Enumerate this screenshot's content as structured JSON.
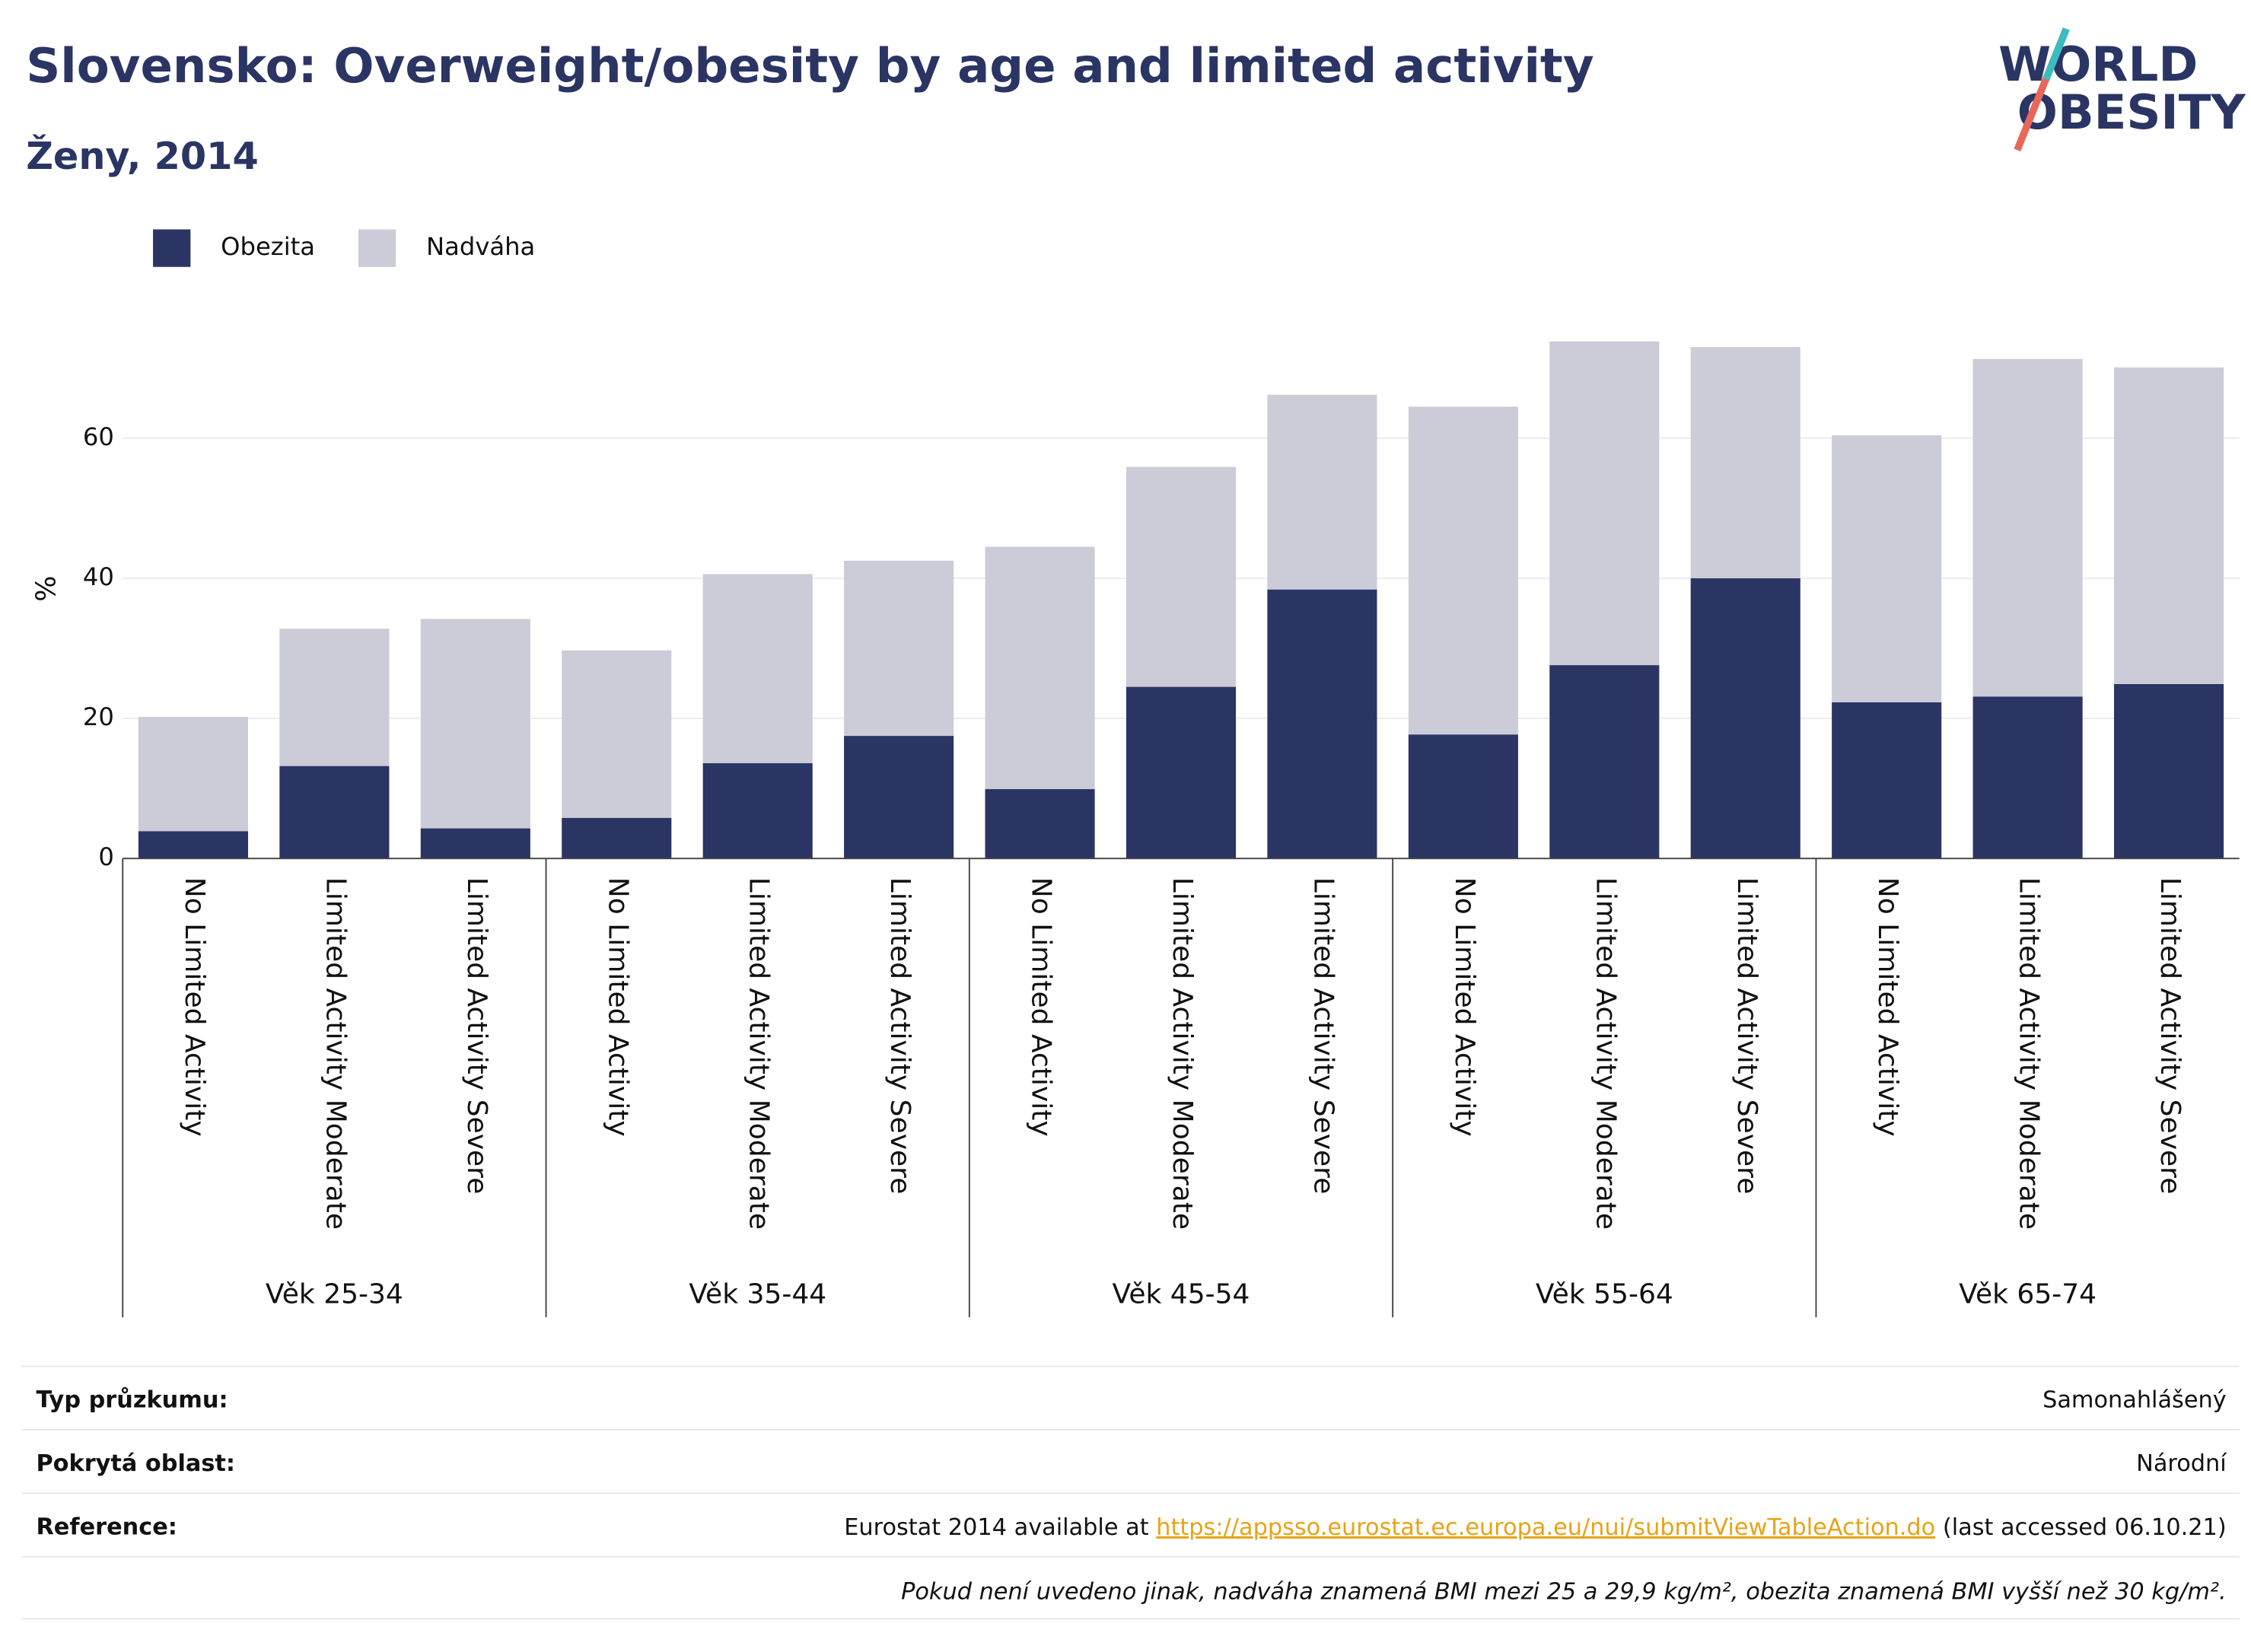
{
  "chart_data": {
    "type": "stacked_bar",
    "title": "Slovensko: Overweight/obesity by age and limited activity",
    "subtitle": "Ženy, 2014",
    "y_label": "%",
    "groups": [
      "Věk 25-34",
      "Věk 35-44",
      "Věk 45-54",
      "Věk 55-64",
      "Věk 65-74"
    ],
    "categories": [
      "No Limited Activity",
      "Limited Activity Moderate",
      "Limited Activity Severe",
      "No Limited Activity",
      "Limited Activity Moderate",
      "Limited Activity Severe",
      "No Limited Activity",
      "Limited Activity Moderate",
      "Limited Activity Severe",
      "No Limited Activity",
      "Limited Activity Moderate",
      "Limited Activity Severe",
      "No Limited Activity",
      "Limited Activity Moderate",
      "Limited Activity Severe"
    ],
    "series": [
      {
        "name": "Obezita",
        "color": "#2a3564",
        "values": [
          3.9,
          13.2,
          4.3,
          5.8,
          13.6,
          17.5,
          9.9,
          24.5,
          38.4,
          17.7,
          27.6,
          40.0,
          22.3,
          23.1,
          24.9
        ]
      },
      {
        "name": "Nadváha",
        "color": "#cbccd8",
        "values": [
          16.3,
          19.6,
          29.9,
          23.9,
          27.0,
          25.0,
          34.6,
          31.4,
          27.8,
          46.8,
          46.2,
          33.0,
          38.1,
          48.2,
          45.2
        ]
      }
    ],
    "ylim": [
      0,
      76
    ],
    "yticks": [
      0,
      20,
      40,
      60
    ],
    "grid": true
  },
  "logo": {
    "line1": "WORLD",
    "line2": "OBESITY"
  },
  "footer": {
    "rows": [
      {
        "label": "Typ průzkumu:",
        "value": "Samonahlášený"
      },
      {
        "label": "Pokrytá oblast:",
        "value": "Národní"
      }
    ],
    "reference": {
      "label": "Reference:",
      "before": "Eurostat 2014 available at ",
      "link": "https://appsso.eurostat.ec.europa.eu/nui/submitViewTableAction.do",
      "after": " (last accessed 06.10.21)"
    },
    "note": "Pokud není uvedeno jinak, nadváha znamená BMI mezi 25 a 29,9 kg/m², obezita znamená BMI vyšší než 30 kg/m²."
  }
}
